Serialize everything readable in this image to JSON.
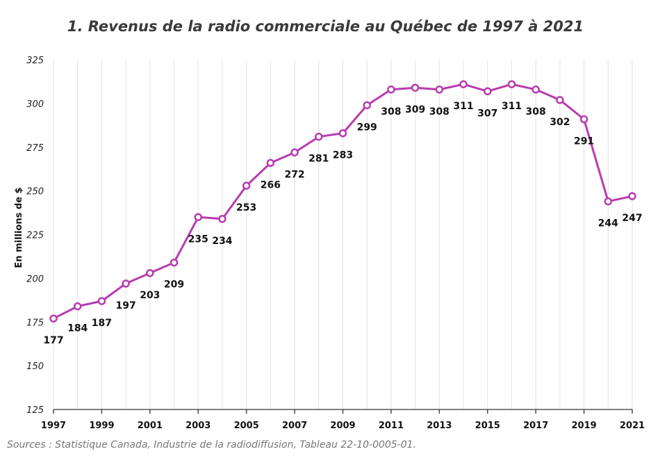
{
  "chart_data": {
    "type": "line",
    "title": "1. Revenus de la radio commerciale au Québec de 1997 à 2021",
    "ylabel": "En millions de $",
    "xlabel": "",
    "x": [
      1997,
      1998,
      1999,
      2000,
      2001,
      2002,
      2003,
      2004,
      2005,
      2006,
      2007,
      2008,
      2009,
      2010,
      2011,
      2012,
      2013,
      2014,
      2015,
      2016,
      2017,
      2018,
      2019,
      2020,
      2021
    ],
    "x_tick_labels": [
      "1997",
      "1999",
      "2001",
      "2003",
      "2005",
      "2007",
      "2009",
      "2011",
      "2013",
      "2015",
      "2017",
      "2019",
      "2021"
    ],
    "y_tick_labels": [
      "125",
      "150",
      "175",
      "200",
      "225",
      "250",
      "275",
      "300",
      "325"
    ],
    "ylim": [
      125,
      325
    ],
    "xlim": [
      1997,
      2021
    ],
    "series": [
      {
        "values": [
          177,
          184,
          187,
          197,
          203,
          209,
          235,
          234,
          253,
          266,
          272,
          281,
          283,
          299,
          308,
          309,
          308,
          311,
          307,
          311,
          308,
          302,
          291,
          244,
          247
        ],
        "labels": [
          "177",
          "184",
          "187",
          "197",
          "203",
          "209",
          "235",
          "234",
          "253",
          "266",
          "272",
          "281",
          "283",
          "299",
          "308",
          "309",
          "308",
          "311",
          "307",
          "311",
          "308",
          "302",
          "291",
          "244",
          "247"
        ],
        "color": "#b83bb0"
      }
    ],
    "grid": "vertical",
    "legend": "none"
  },
  "source": "Sources : Statistique Canada, Industrie de la radiodiffusion, Tableau 22-10-0005-01."
}
